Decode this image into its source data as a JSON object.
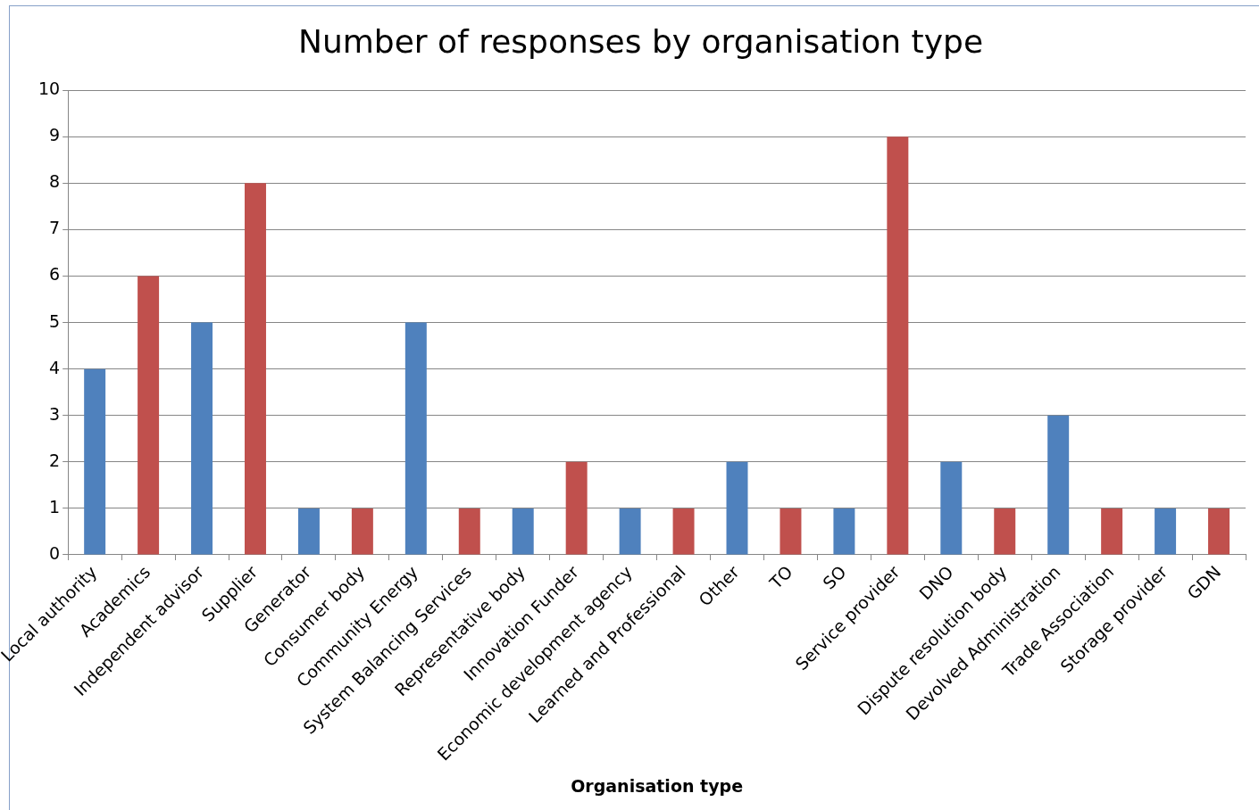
{
  "chart_data": {
    "type": "bar",
    "title": "Number of responses by organisation type",
    "xlabel": "Organisation type",
    "categories": [
      "Local authority",
      "Academics",
      "Independent advisor",
      "Supplier",
      "Generator",
      "Consumer body",
      "Community Energy",
      "System Balancing Services",
      "Representative body",
      "Innovation Funder",
      "Economic development agency",
      "Learned and Professional",
      "Other",
      "TO",
      "SO",
      "Service provider",
      "DNO",
      "Dispute resolution body",
      "Devolved Administration",
      "Trade Association",
      "Storage provider",
      "GDN"
    ],
    "values": [
      4,
      6,
      5,
      8,
      1,
      1,
      5,
      1,
      1,
      2,
      1,
      1,
      2,
      1,
      1,
      9,
      2,
      1,
      3,
      1,
      1,
      1
    ],
    "colors": [
      "#4f81bd",
      "#c0504d",
      "#4f81bd",
      "#c0504d",
      "#4f81bd",
      "#c0504d",
      "#4f81bd",
      "#c0504d",
      "#4f81bd",
      "#c0504d",
      "#4f81bd",
      "#c0504d",
      "#4f81bd",
      "#c0504d",
      "#4f81bd",
      "#c0504d",
      "#4f81bd",
      "#c0504d",
      "#4f81bd",
      "#c0504d",
      "#4f81bd",
      "#c0504d"
    ],
    "ylim": [
      0,
      10
    ],
    "yticks": [
      0,
      1,
      2,
      3,
      4,
      5,
      6,
      7,
      8,
      9,
      10
    ],
    "grid": "y",
    "legend": false
  }
}
